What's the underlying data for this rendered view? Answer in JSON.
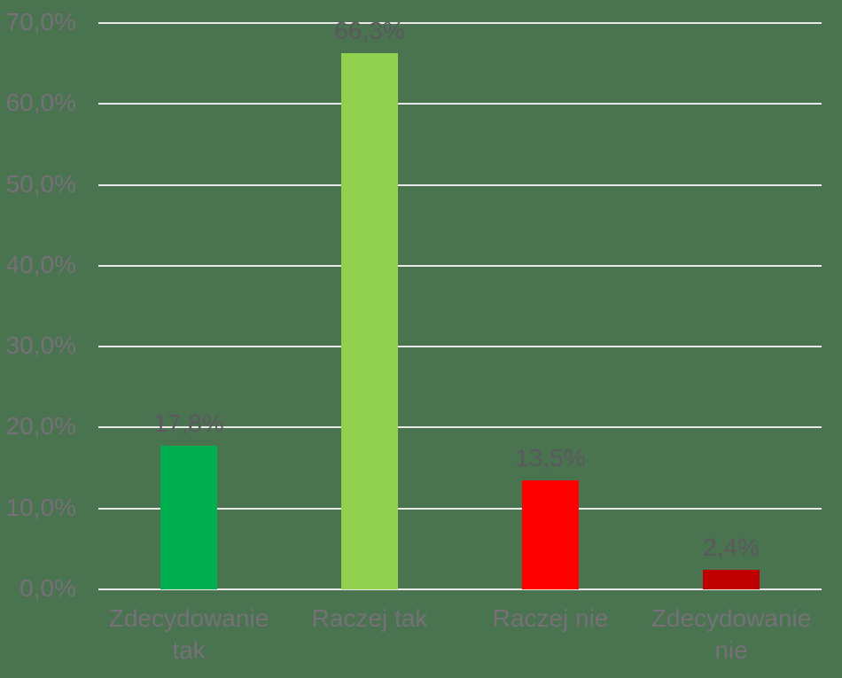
{
  "chart_data": {
    "type": "bar",
    "title": "",
    "xlabel": "",
    "ylabel": "",
    "categories": [
      "Zdecydowanie tak",
      "Raczej tak",
      "Raczej nie",
      "Zdecydowanie nie"
    ],
    "values": [
      17.8,
      66.3,
      13.5,
      2.4
    ],
    "data_labels": [
      "17,8%",
      "66,3%",
      "13,5%",
      "2,4%"
    ],
    "bar_colors": [
      "#00b050",
      "#92d050",
      "#ff0000",
      "#c00000"
    ],
    "y_ticks": [
      {
        "value": 0,
        "label": "0,0%"
      },
      {
        "value": 10,
        "label": "10,0%"
      },
      {
        "value": 20,
        "label": "20,0%"
      },
      {
        "value": 30,
        "label": "30,0%"
      },
      {
        "value": 40,
        "label": "40,0%"
      },
      {
        "value": 50,
        "label": "50,0%"
      },
      {
        "value": 60,
        "label": "60,0%"
      },
      {
        "value": 70,
        "label": "70,0%"
      }
    ],
    "ylim": [
      0,
      70
    ],
    "grid": true,
    "legend": false
  },
  "style": {
    "background_color": "#4a7350",
    "gridline_color": "#e9e9e9",
    "axis_label_color": "#767079",
    "data_label_color": "#5b585f"
  }
}
